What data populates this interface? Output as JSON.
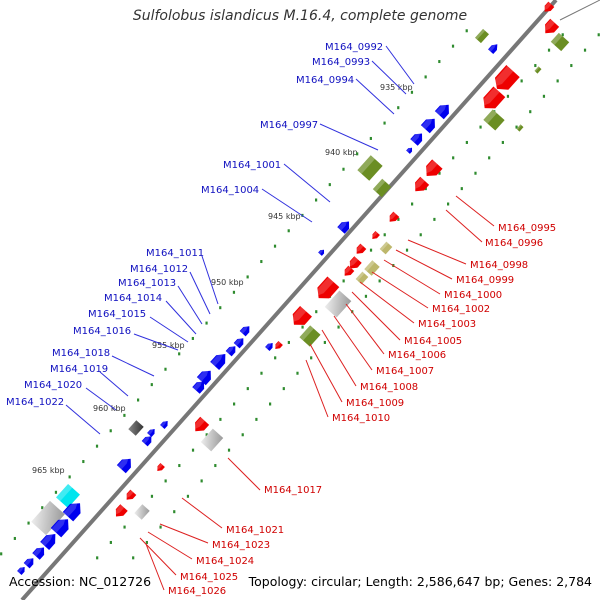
{
  "title": "Sulfolobus islandicus M.16.4, complete genome",
  "footer": {
    "accession": "Accession: NC_012726",
    "summary": "Topology: circular; Length: 2,586,647 bp; Genes: 2,784"
  },
  "colors": {
    "forward_gene": "#0000ee",
    "reverse_gene": "#ee0000",
    "forward_label": "#1010c0",
    "reverse_label": "#d00000",
    "olive_feature": "#6b8e23",
    "khaki_feature": "#bdb76b",
    "cyan_feature": "#00e5ee",
    "gray_feature": "#bbbbbb",
    "backbone": "#777777",
    "tick_dot": "#2e8b2e"
  },
  "ticks": [
    "935 kbp",
    "940 kbp",
    "945 kbp",
    "950 kbp",
    "955 kbp",
    "960 kbp",
    "965 kbp"
  ],
  "forward_labels": [
    "M164_0992",
    "M164_0993",
    "M164_0994",
    "M164_0997",
    "M164_1001",
    "M164_1004",
    "M164_1011",
    "M164_1012",
    "M164_1013",
    "M164_1014",
    "M164_1015",
    "M164_1016",
    "M164_1018",
    "M164_1019",
    "M164_1020",
    "M164_1022"
  ],
  "reverse_labels": [
    "M164_0995",
    "M164_0996",
    "M164_0998",
    "M164_0999",
    "M164_1000",
    "M164_1002",
    "M164_1003",
    "M164_1005",
    "M164_1006",
    "M164_1007",
    "M164_1008",
    "M164_1009",
    "M164_1010",
    "M164_1017",
    "M164_1021",
    "M164_1023",
    "M164_1024",
    "M164_1025",
    "M164_1026"
  ]
}
